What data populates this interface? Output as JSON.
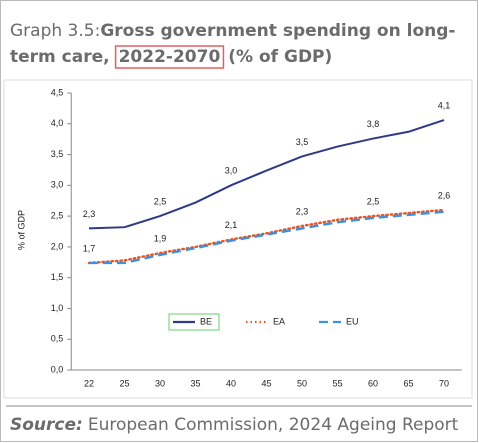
{
  "chart_data": {
    "type": "line",
    "title_prefix": "Graph 3.5:",
    "title_lines": [
      "Gross government spending on long-",
      "term care,",
      "2022-2070",
      "(% of GDP)"
    ],
    "ylabel": "% of GDP",
    "categories": [
      "22",
      "25",
      "30",
      "35",
      "40",
      "45",
      "50",
      "55",
      "60",
      "65",
      "70"
    ],
    "ylim": [
      0,
      4.5
    ],
    "yticks": [
      {
        "value": 0,
        "label": "0,0"
      },
      {
        "value": 0.5,
        "label": "0,5"
      },
      {
        "value": 1,
        "label": "1,0"
      },
      {
        "value": 1.5,
        "label": "1,5"
      },
      {
        "value": 2,
        "label": "2,0"
      },
      {
        "value": 2.5,
        "label": "2,5"
      },
      {
        "value": 3,
        "label": "3,0"
      },
      {
        "value": 3.5,
        "label": "3,5"
      },
      {
        "value": 4,
        "label": "4,0"
      },
      {
        "value": 4.5,
        "label": "4,5"
      }
    ],
    "legend": "lower center",
    "series": [
      {
        "name": "BE",
        "color": "#2e3a87",
        "style": "solid",
        "values": [
          2.3,
          2.32,
          2.5,
          2.72,
          3.0,
          3.24,
          3.47,
          3.63,
          3.76,
          3.87,
          4.06
        ],
        "value_labels": [
          "2,3",
          null,
          "2,5",
          null,
          "3,0",
          null,
          "3,5",
          null,
          "3,8",
          null,
          "4,1"
        ]
      },
      {
        "name": "EA",
        "color": "#e8541f",
        "style": "dotted",
        "values": [
          1.74,
          1.78,
          1.9,
          2.0,
          2.12,
          2.22,
          2.34,
          2.44,
          2.5,
          2.55,
          2.6
        ],
        "value_labels": [
          "1,7",
          null,
          "1,9",
          null,
          "2,1",
          null,
          "2,3",
          null,
          "2,5",
          null,
          "2,6"
        ]
      },
      {
        "name": "EU",
        "color": "#3d8fe0",
        "style": "dashed",
        "values": [
          1.74,
          1.74,
          1.87,
          1.98,
          2.1,
          2.2,
          2.3,
          2.4,
          2.47,
          2.52,
          2.57
        ]
      }
    ],
    "source_label": "Source:",
    "source": "European Commission, 2024 Ageing Report"
  }
}
